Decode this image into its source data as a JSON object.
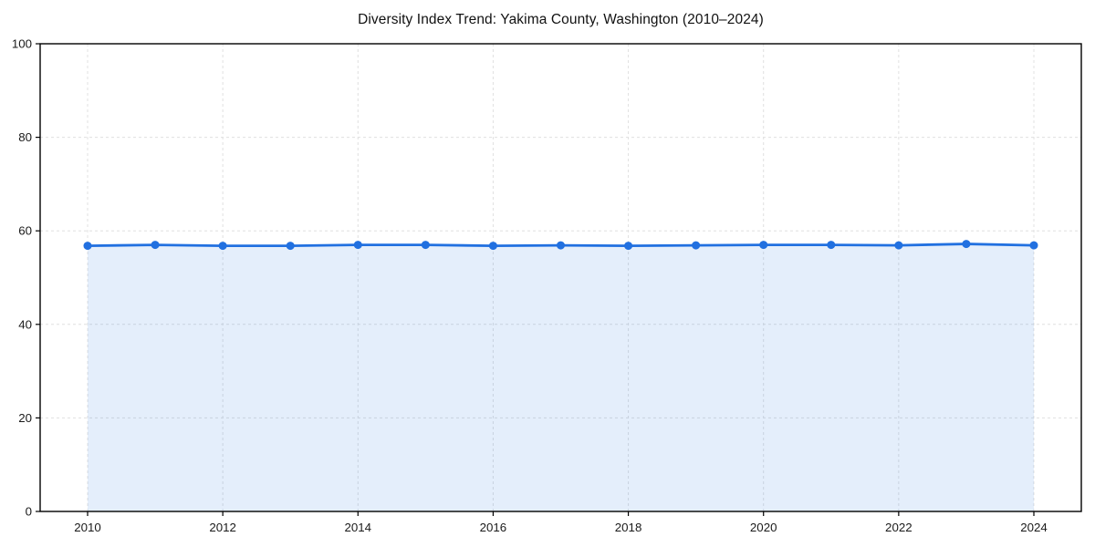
{
  "chart_data": {
    "type": "line",
    "title": "Diversity Index Trend: Yakima County, Washington (2010–2024)",
    "xlabel": "",
    "ylabel": "",
    "x": [
      2010,
      2011,
      2012,
      2013,
      2014,
      2015,
      2016,
      2017,
      2018,
      2019,
      2020,
      2021,
      2022,
      2023,
      2024
    ],
    "series": [
      {
        "name": "Diversity Index",
        "values": [
          56.8,
          57.0,
          56.8,
          56.8,
          57.0,
          57.0,
          56.8,
          56.9,
          56.8,
          56.9,
          57.0,
          57.0,
          56.9,
          57.2,
          56.9
        ]
      }
    ],
    "ylim": [
      0,
      100
    ],
    "yticks": [
      0,
      20,
      40,
      60,
      80,
      100
    ],
    "xticks": [
      2010,
      2012,
      2014,
      2016,
      2018,
      2020,
      2022,
      2024
    ],
    "grid": true,
    "grid_style": "dashed",
    "legend": false,
    "area_fill": true,
    "colors": {
      "line": "#2170e0",
      "marker": "#2170e0",
      "fill": "rgba(33, 112, 224, 0.12)",
      "grid": "#e0e0e0",
      "axis": "#000000",
      "background": "#ffffff",
      "text": "#1a1a1a"
    }
  }
}
